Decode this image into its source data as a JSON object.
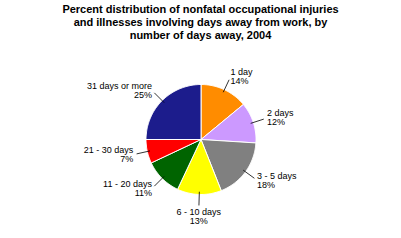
{
  "chart_data": {
    "type": "pie",
    "title": "Percent distribution of nonfatal occupational injuries\nand illnesses involving days away from work, by\nnumber of days away, 2004",
    "categories": [
      "1 day",
      "2 days",
      "3 - 5 days",
      "6 - 10 days",
      "11 - 20 days",
      "21 - 30 days",
      "31 days or more"
    ],
    "values": [
      14,
      12,
      18,
      13,
      11,
      7,
      25
    ],
    "value_labels": [
      "14%",
      "12%",
      "18%",
      "13%",
      "11%",
      "7%",
      "25%"
    ],
    "colors": [
      "#FF8C00",
      "#CC99FF",
      "#808080",
      "#FFFF00",
      "#006400",
      "#FF0000",
      "#1C1C8C"
    ],
    "data_labels": true
  }
}
